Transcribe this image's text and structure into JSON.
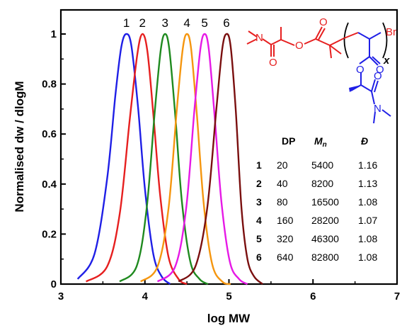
{
  "chart_data": {
    "type": "line",
    "xlabel": "log MW",
    "ylabel": "Normalised dw / dlogM",
    "xlim": [
      3,
      7
    ],
    "ylim": [
      0,
      1.08
    ],
    "xticks": [
      "3",
      "4",
      "5",
      "6",
      "7"
    ],
    "yticks": [
      "0",
      "0.2",
      "0.4",
      "0.6",
      "0.8",
      "1"
    ],
    "series": [
      {
        "name": "1",
        "color": "#1f1fe6",
        "peak": 3.78,
        "x": [
          3.2,
          3.4,
          3.55,
          3.65,
          3.72,
          3.78,
          3.84,
          3.92,
          4.0,
          4.1,
          4.2,
          4.3
        ],
        "y": [
          0.02,
          0.12,
          0.42,
          0.76,
          0.95,
          1.0,
          0.95,
          0.7,
          0.38,
          0.12,
          0.03,
          0.0
        ]
      },
      {
        "name": "2",
        "color": "#e61f1f",
        "peak": 3.97,
        "x": [
          3.3,
          3.55,
          3.7,
          3.82,
          3.91,
          3.97,
          4.03,
          4.1,
          4.18,
          4.28,
          4.4,
          4.5
        ],
        "y": [
          0.01,
          0.07,
          0.28,
          0.66,
          0.92,
          1.0,
          0.93,
          0.68,
          0.36,
          0.11,
          0.02,
          0.0
        ]
      },
      {
        "name": "3",
        "color": "#1f8a1f",
        "peak": 4.24,
        "x": [
          3.7,
          3.9,
          4.02,
          4.12,
          4.19,
          4.24,
          4.29,
          4.36,
          4.44,
          4.54,
          4.65,
          4.75
        ],
        "y": [
          0.01,
          0.07,
          0.3,
          0.7,
          0.94,
          1.0,
          0.94,
          0.68,
          0.33,
          0.09,
          0.02,
          0.0
        ]
      },
      {
        "name": "4",
        "color": "#f5960f",
        "peak": 4.5,
        "x": [
          3.95,
          4.15,
          4.28,
          4.38,
          4.45,
          4.5,
          4.55,
          4.62,
          4.7,
          4.8,
          4.92,
          5.02
        ],
        "y": [
          0.01,
          0.07,
          0.3,
          0.7,
          0.94,
          1.0,
          0.94,
          0.67,
          0.32,
          0.08,
          0.01,
          0.0
        ]
      },
      {
        "name": "5",
        "color": "#e619e6",
        "peak": 4.71,
        "x": [
          4.15,
          4.36,
          4.49,
          4.59,
          4.66,
          4.71,
          4.76,
          4.83,
          4.91,
          5.01,
          5.12,
          5.22
        ],
        "y": [
          0.01,
          0.07,
          0.3,
          0.7,
          0.94,
          1.0,
          0.94,
          0.67,
          0.33,
          0.09,
          0.02,
          0.0
        ]
      },
      {
        "name": "6",
        "color": "#7a0f0f",
        "peak": 4.97,
        "x": [
          4.4,
          4.6,
          4.74,
          4.85,
          4.92,
          4.97,
          5.02,
          5.08,
          5.15,
          5.22,
          5.3,
          5.4
        ],
        "y": [
          0.01,
          0.07,
          0.3,
          0.7,
          0.94,
          1.0,
          0.95,
          0.7,
          0.3,
          0.1,
          0.03,
          0.0
        ]
      }
    ],
    "table": {
      "headers": [
        "DP",
        "M",
        "n",
        "Đ"
      ],
      "rows": [
        {
          "id": "1",
          "dp": "20",
          "mn": "5400",
          "d": "1.16"
        },
        {
          "id": "2",
          "dp": "40",
          "mn": "8200",
          "d": "1.13"
        },
        {
          "id": "3",
          "dp": "80",
          "mn": "16500",
          "d": "1.08"
        },
        {
          "id": "4",
          "dp": "160",
          "mn": "28200",
          "d": "1.07"
        },
        {
          "id": "5",
          "dp": "320",
          "mn": "46300",
          "d": "1.08"
        },
        {
          "id": "6",
          "dp": "640",
          "mn": "82800",
          "d": "1.08"
        }
      ]
    },
    "structure": {
      "atoms_red": [
        "N",
        "O",
        "O",
        "O"
      ],
      "atoms_blue": [
        "O",
        "O",
        "O",
        "N"
      ],
      "bromine": "Br",
      "subscript": "x"
    },
    "grid": false
  }
}
